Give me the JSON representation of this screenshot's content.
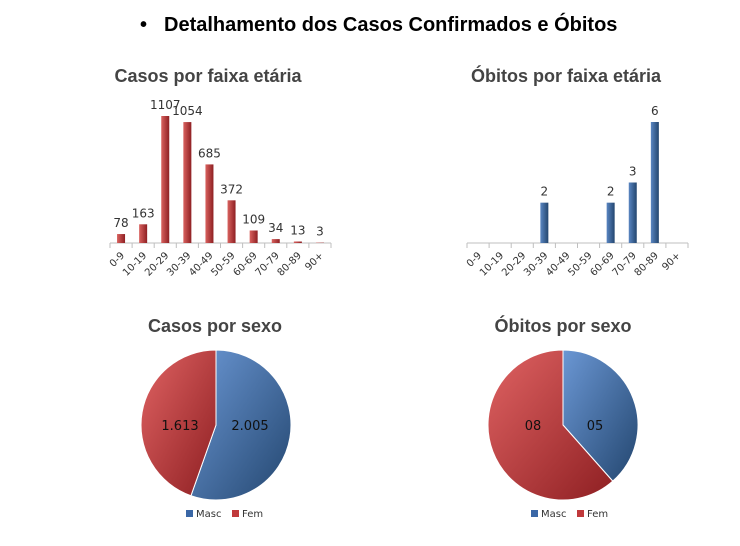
{
  "heading": {
    "bullet": "•",
    "text": "Detalhamento dos Casos Confirmados e Óbitos"
  },
  "colors": {
    "red": "#c0393b",
    "red_dark": "#8e1f22",
    "blue": "#3a67a6",
    "blue_dark": "#23466f",
    "axis": "#bfbfbf"
  },
  "chart_data": [
    {
      "type": "bar",
      "title": "Casos por faixa etária",
      "categories": [
        "0-9",
        "10-19",
        "20-29",
        "30-39",
        "40-49",
        "50-59",
        "60-69",
        "70-79",
        "80-89",
        "90+"
      ],
      "values": [
        78,
        163,
        1107,
        1054,
        685,
        372,
        109,
        34,
        13,
        3
      ],
      "labels": [
        "78",
        "163",
        "1107",
        "1054",
        "685",
        "372",
        "109",
        "34",
        "13",
        "3"
      ],
      "ylim": [
        0,
        1107
      ]
    },
    {
      "type": "bar",
      "title": "Óbitos por faixa etária",
      "categories": [
        "0-9",
        "10-19",
        "20-29",
        "30-39",
        "40-49",
        "50-59",
        "60-69",
        "70-79",
        "80-89",
        "90+"
      ],
      "values": [
        0,
        0,
        0,
        2,
        0,
        0,
        2,
        3,
        6,
        0
      ],
      "labels": [
        "",
        "",
        "",
        "2",
        "",
        "",
        "2",
        "3",
        "6",
        ""
      ],
      "ylim": [
        0,
        6
      ]
    },
    {
      "type": "pie",
      "title": "Casos por sexo",
      "slices": [
        {
          "name": "Masc",
          "value": 2005,
          "label": "2.005"
        },
        {
          "name": "Fem",
          "value": 1613,
          "label": "1.613"
        }
      ]
    },
    {
      "type": "pie",
      "title": "Óbitos por sexo",
      "slices": [
        {
          "name": "Masc",
          "value": 5,
          "label": "05"
        },
        {
          "name": "Fem",
          "value": 8,
          "label": "08"
        }
      ]
    }
  ]
}
